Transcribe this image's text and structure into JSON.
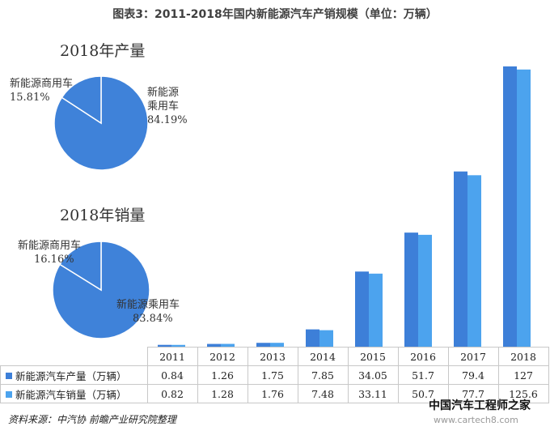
{
  "title": "图表3：2011-2018年国内新能源汽车产销规模（单位：万辆）",
  "pie_production": {
    "title": "2018年产量",
    "slices": [
      {
        "name": "新能源乘用车",
        "line1": "新能源",
        "line2": "乘用车",
        "value_label": "84.19%",
        "value": 84.19,
        "color": "#3f82d9"
      },
      {
        "name": "新能源商用车",
        "line1": "新能源商用车",
        "value_label": "15.81%",
        "value": 15.81,
        "color": "#3f82d9"
      }
    ]
  },
  "pie_sales": {
    "title": "2018年销量",
    "slices": [
      {
        "name": "新能源乘用车",
        "line1": "新能源乘用车",
        "value_label": "83.84%",
        "value": 83.84,
        "color": "#3f82d9"
      },
      {
        "name": "新能源商用车",
        "line1": "新能源商用车",
        "value_label": "16.16%",
        "value": 16.16,
        "color": "#3f82d9"
      }
    ]
  },
  "chart_data": {
    "type": "bar",
    "categories": [
      "2011",
      "2012",
      "2013",
      "2014",
      "2015",
      "2016",
      "2017",
      "2018"
    ],
    "series": [
      {
        "name": "新能源汽车产量（万辆）",
        "values": [
          0.84,
          1.26,
          1.75,
          7.85,
          34.05,
          51.7,
          79.4,
          127
        ],
        "color": "#3d7fd8"
      },
      {
        "name": "新能源汽车销量（万辆）",
        "values": [
          0.82,
          1.28,
          1.76,
          7.48,
          33.11,
          50.7,
          77.7,
          125.6
        ],
        "color": "#4ca3ee"
      }
    ],
    "value_labels": [
      [
        "0.84",
        "1.26",
        "1.75",
        "7.85",
        "34.05",
        "51.7",
        "79.4",
        "127"
      ],
      [
        "0.82",
        "1.28",
        "1.76",
        "7.48",
        "33.11",
        "50.7",
        "77.7",
        "125.6"
      ]
    ],
    "ylim": [
      0,
      127
    ]
  },
  "source": "资料来源：中汽协  前瞻产业研究院整理",
  "watermark_lines": [
    "中国汽车工程师之家",
    "www.cartech8.com"
  ]
}
